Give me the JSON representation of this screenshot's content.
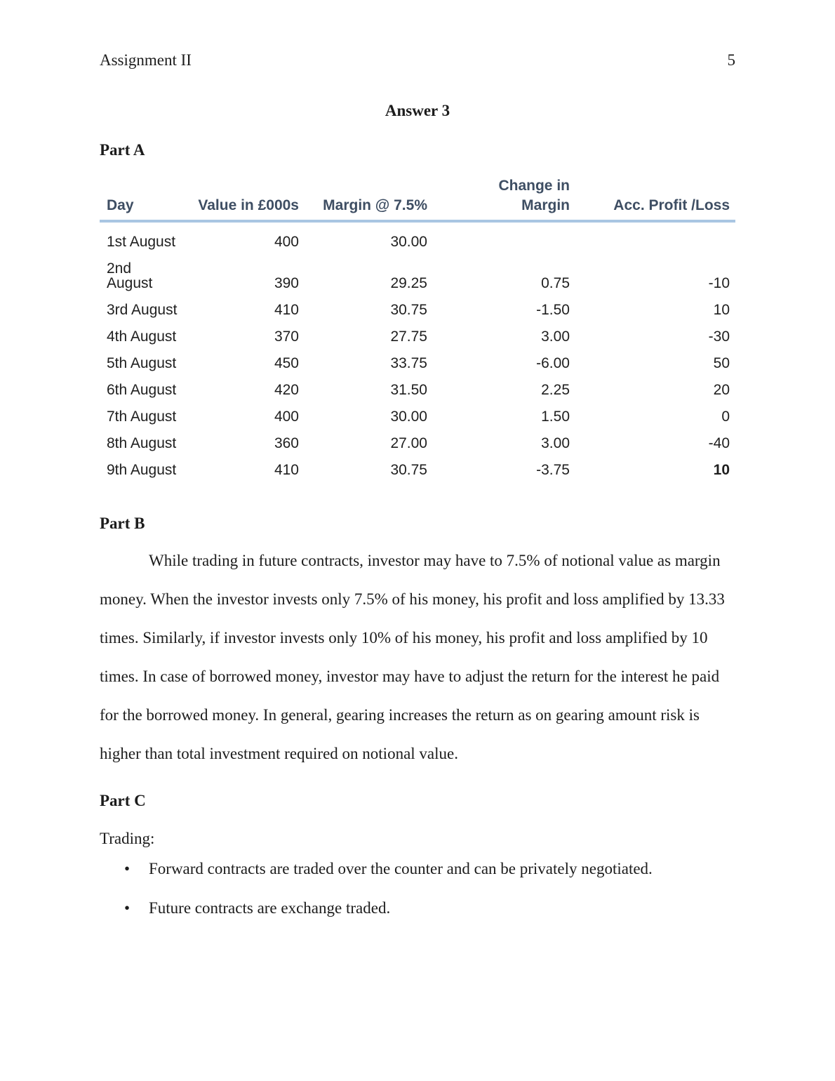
{
  "header": {
    "title": "Assignment II",
    "page_number": "5"
  },
  "answer_title": "Answer 3",
  "part_a": {
    "heading": "Part A",
    "table": {
      "columns": [
        "Day",
        "Value in £000s",
        "Margin @ 7.5%",
        "Change in\nMargin",
        "Acc. Profit /Loss"
      ],
      "rows": [
        [
          "1st August",
          "400",
          "30.00",
          "",
          ""
        ],
        [
          "2nd\nAugust",
          "390",
          "29.25",
          "0.75",
          "-10"
        ],
        [
          "3rd August",
          "410",
          "30.75",
          "-1.50",
          "10"
        ],
        [
          "4th August",
          "370",
          "27.75",
          "3.00",
          "-30"
        ],
        [
          "5th August",
          "450",
          "33.75",
          "-6.00",
          "50"
        ],
        [
          "6th August",
          "420",
          "31.50",
          "2.25",
          "20"
        ],
        [
          "7th August",
          "400",
          "30.00",
          "1.50",
          "0"
        ],
        [
          "8th August",
          "360",
          "27.00",
          "3.00",
          "-40"
        ],
        [
          "9th August",
          "410",
          "30.75",
          "-3.75",
          "10"
        ]
      ],
      "colors": {
        "header_text": "#3e4e63",
        "header_rule": "#a9c6e2"
      }
    }
  },
  "part_b": {
    "heading": "Part B",
    "paragraph": "While trading in future contracts, investor may have to 7.5% of notional value as margin money. When the investor invests only 7.5% of his money, his profit and loss amplified by 13.33 times. Similarly, if investor invests only 10% of his money, his profit and loss amplified by 10 times. In case of borrowed money, investor may have to adjust the return for the interest he paid for the borrowed money. In general, gearing increases the return as on gearing amount risk is higher than total investment required on notional value."
  },
  "part_c": {
    "heading": "Part C",
    "intro": "Trading:",
    "bullets": [
      "Forward contracts are traded over the counter and can be privately negotiated.",
      "Future contracts are exchange traded."
    ]
  }
}
